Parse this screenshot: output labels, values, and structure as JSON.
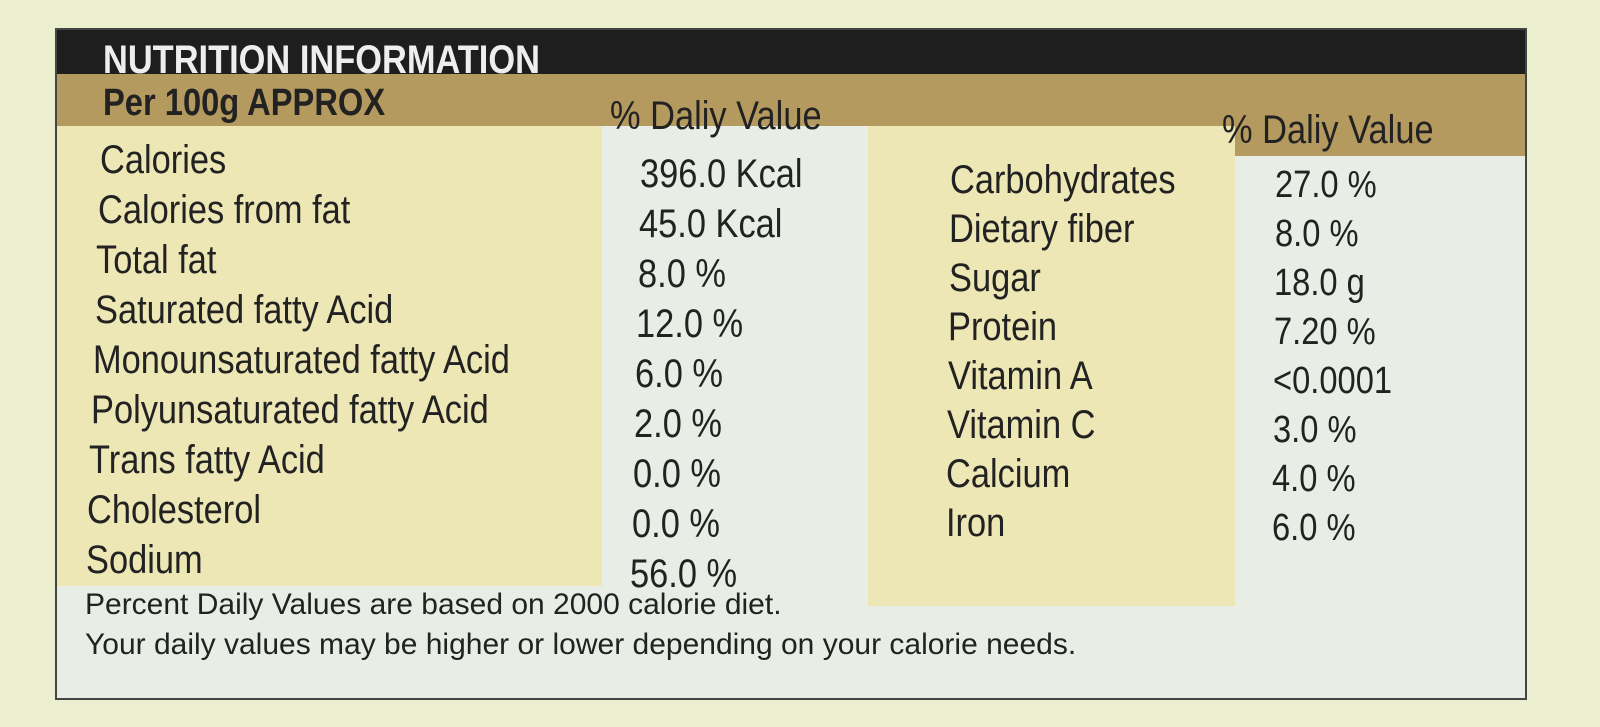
{
  "header": {
    "title": "NUTRITION INFORMATION",
    "serving": "Per 100g APPROX",
    "column_header_left": "% Daliy Value",
    "column_header_right": "% Daliy Value"
  },
  "left_rows": [
    [
      "Calories",
      "396.0 Kcal"
    ],
    [
      "Calories from fat",
      "45.0 Kcal"
    ],
    [
      "Total fat",
      "8.0 %"
    ],
    [
      "Saturated fatty Acid",
      "12.0 %"
    ],
    [
      "Monounsaturated fatty Acid",
      "6.0 %"
    ],
    [
      "Polyunsaturated fatty Acid",
      "2.0 %"
    ],
    [
      "Trans fatty Acid",
      "0.0 %"
    ],
    [
      "Cholesterol",
      "0.0 %"
    ],
    [
      "Sodium",
      "56.0 %"
    ]
  ],
  "right_rows": [
    [
      "Carbohydrates",
      "27.0 %"
    ],
    [
      "Dietary fiber",
      "8.0 %"
    ],
    [
      "Sugar",
      "18.0 g"
    ],
    [
      "Protein",
      "7.20 %"
    ],
    [
      "Vitamin A",
      "<0.0001"
    ],
    [
      "Vitamin C",
      "3.0 %"
    ],
    [
      "Calcium",
      "4.0 %"
    ],
    [
      "Iron",
      "6.0 %"
    ]
  ],
  "footnotes": [
    "Percent Daily Values are based on 2000 calorie diet.",
    "Your daily values may be higher or lower depending on your calorie needs."
  ]
}
